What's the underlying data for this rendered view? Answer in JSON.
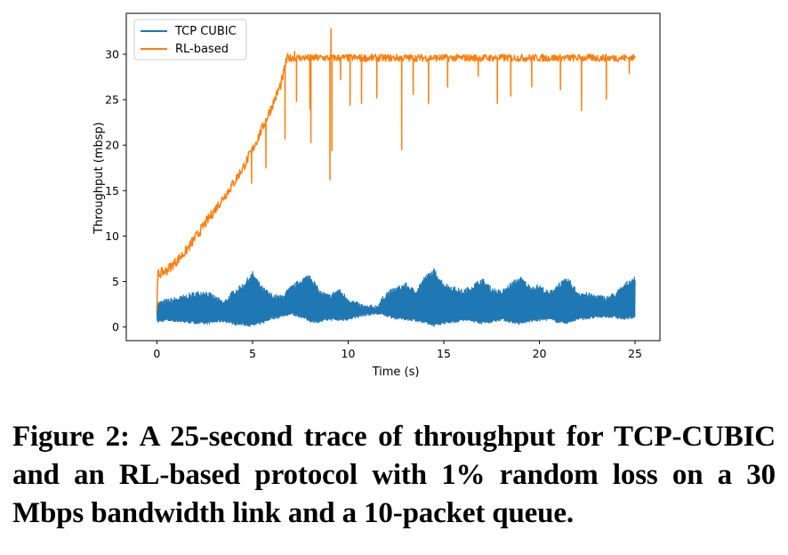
{
  "caption": "Figure 2:  A 25-second trace of throughput for TCP-CUBIC and an RL-based protocol with 1% random loss on a 30 Mbps bandwidth link and a 10-packet queue.",
  "chart_data": {
    "type": "line",
    "xlabel": "Time (s)",
    "ylabel": "Throughput (mbsp)",
    "xlim": [
      -1.6,
      26.3
    ],
    "ylim": [
      -1.5,
      34.5
    ],
    "xticks": [
      0,
      5,
      10,
      15,
      20,
      25
    ],
    "yticks": [
      0,
      5,
      10,
      15,
      20,
      25,
      30
    ],
    "grid": false,
    "legend_position": "top-left",
    "series": [
      {
        "name": "TCP CUBIC",
        "color": "#1f77b4",
        "pattern": "oscillating",
        "x": [
          0,
          0.5,
          1,
          1.5,
          2,
          2.5,
          3,
          3.5,
          4,
          4.5,
          5,
          5.5,
          6,
          6.5,
          7,
          7.5,
          8,
          8.5,
          9,
          9.5,
          10,
          10.5,
          11,
          11.5,
          12,
          12.5,
          13,
          13.5,
          14,
          14.5,
          15,
          15.5,
          16,
          16.5,
          17,
          17.5,
          18,
          18.5,
          19,
          19.5,
          20,
          20.5,
          21,
          21.5,
          22,
          22.5,
          23,
          23.5,
          24,
          24.5,
          25
        ],
        "upper": [
          2.5,
          2.8,
          3.0,
          3.3,
          3.6,
          3.8,
          3.2,
          2.6,
          3.8,
          4.5,
          5.8,
          4.2,
          3.4,
          3.2,
          4.2,
          5.0,
          5.6,
          3.8,
          3.3,
          4.0,
          3.0,
          2.4,
          2.1,
          2.2,
          3.6,
          4.1,
          4.6,
          3.8,
          5.3,
          6.1,
          4.6,
          4.2,
          3.8,
          4.4,
          5.1,
          4.1,
          3.7,
          4.6,
          5.3,
          4.3,
          4.4,
          3.6,
          4.6,
          5.1,
          3.7,
          3.5,
          3.3,
          3.1,
          3.6,
          4.6,
          5.4
        ],
        "lower": [
          0.6,
          0.8,
          0.7,
          0.6,
          0.5,
          0.4,
          0.6,
          0.7,
          0.4,
          0.3,
          0.2,
          0.5,
          1.0,
          1.2,
          1.5,
          1.2,
          0.7,
          0.6,
          0.9,
          0.8,
          0.9,
          1.2,
          1.4,
          1.5,
          1.3,
          1.0,
          0.9,
          0.8,
          0.5,
          0.2,
          0.5,
          0.6,
          0.8,
          0.7,
          0.5,
          0.6,
          0.9,
          0.6,
          0.4,
          0.7,
          0.8,
          0.9,
          0.6,
          0.5,
          0.9,
          1.0,
          1.1,
          1.2,
          1.1,
          0.9,
          1.2
        ]
      },
      {
        "name": "RL-based",
        "color": "#ff7f0e",
        "pattern": "ramp_then_plateau",
        "x": [
          0,
          0.05,
          0.5,
          1,
          1.5,
          2,
          2.5,
          3,
          3.5,
          4,
          4.5,
          5,
          5.5,
          6,
          6.5,
          6.8,
          7,
          8,
          9,
          10,
          11,
          12,
          13,
          14,
          15,
          16,
          17,
          18,
          19,
          20,
          21,
          22,
          23,
          24,
          25
        ],
        "y": [
          1.8,
          5.8,
          6.2,
          7.2,
          8.3,
          9.8,
          11.3,
          12.8,
          14.3,
          15.8,
          17.5,
          19.5,
          21.8,
          24.2,
          26.8,
          29.5,
          29.6,
          29.6,
          29.6,
          29.6,
          29.6,
          29.6,
          29.6,
          29.6,
          29.6,
          29.6,
          29.6,
          29.6,
          29.6,
          29.6,
          29.6,
          29.6,
          29.6,
          29.6,
          29.6
        ],
        "dips": [
          {
            "x": 4.95,
            "y": 15.8
          },
          {
            "x": 5.7,
            "y": 17.5
          },
          {
            "x": 6.7,
            "y": 20.7
          },
          {
            "x": 7.3,
            "y": 24.8
          },
          {
            "x": 8.0,
            "y": 24.0
          },
          {
            "x": 8.05,
            "y": 20.3
          },
          {
            "x": 9.05,
            "y": 16.2
          },
          {
            "x": 9.15,
            "y": 19.4
          },
          {
            "x": 9.6,
            "y": 27.2
          },
          {
            "x": 10.1,
            "y": 24.4
          },
          {
            "x": 10.7,
            "y": 24.6
          },
          {
            "x": 11.5,
            "y": 25.2
          },
          {
            "x": 12.8,
            "y": 19.5
          },
          {
            "x": 13.4,
            "y": 25.6
          },
          {
            "x": 14.2,
            "y": 24.6
          },
          {
            "x": 15.2,
            "y": 26.4
          },
          {
            "x": 16.8,
            "y": 27.6
          },
          {
            "x": 17.8,
            "y": 24.6
          },
          {
            "x": 18.5,
            "y": 25.4
          },
          {
            "x": 19.6,
            "y": 26.4
          },
          {
            "x": 21.1,
            "y": 26.1
          },
          {
            "x": 22.2,
            "y": 23.8
          },
          {
            "x": 23.5,
            "y": 25.1
          },
          {
            "x": 24.7,
            "y": 27.9
          }
        ],
        "spikes": [
          {
            "x": 9.1,
            "y": 32.8
          },
          {
            "x": 7.2,
            "y": 30.3
          }
        ]
      }
    ]
  }
}
